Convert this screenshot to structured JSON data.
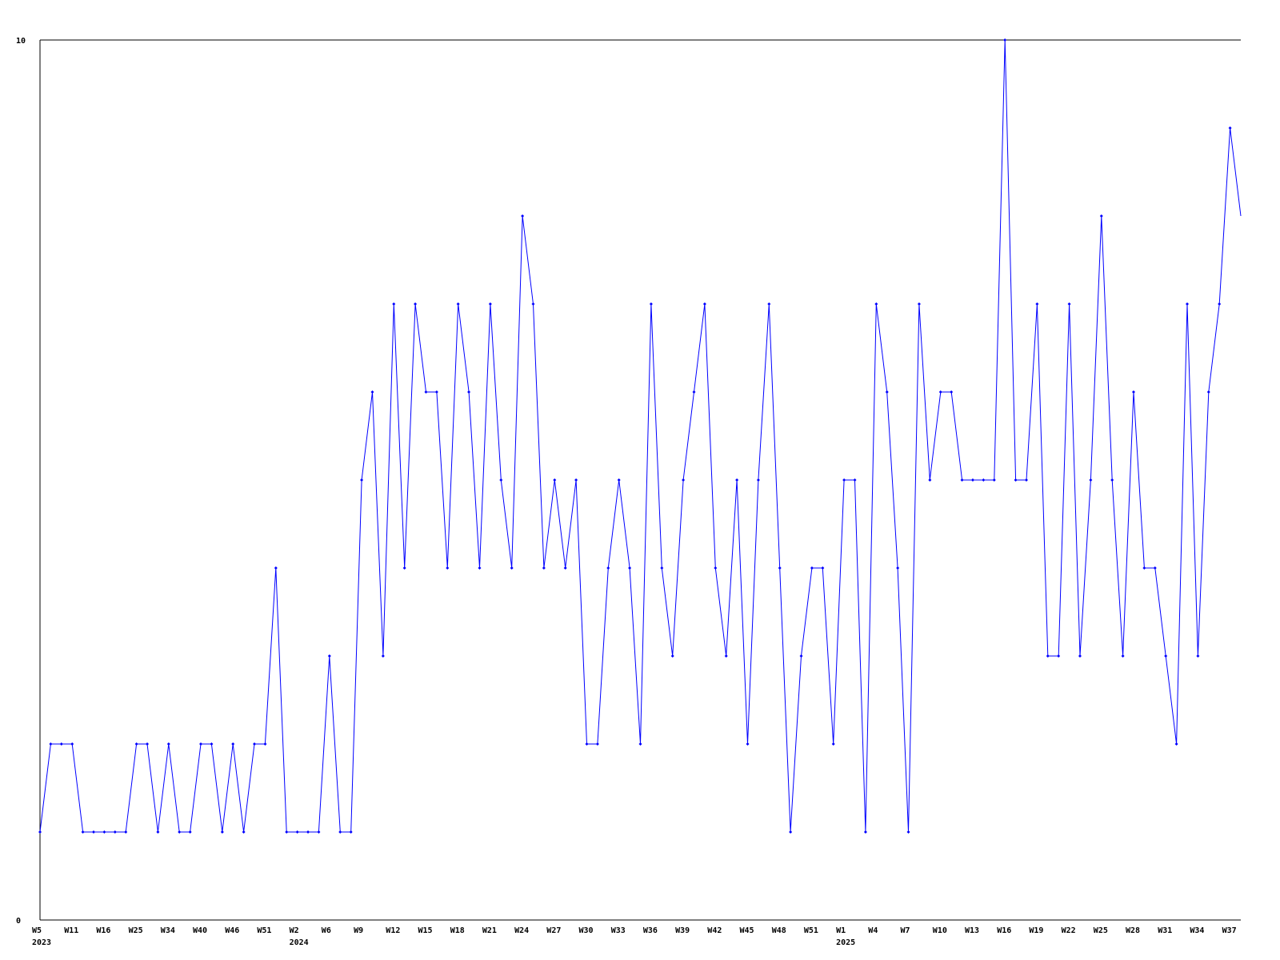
{
  "chart_data": {
    "type": "line",
    "title": "",
    "xlabel": "",
    "ylabel": "",
    "ylim": [
      0,
      10
    ],
    "y_tick_labels": [
      "0",
      "10"
    ],
    "grid": false,
    "line_color": "#0000ff",
    "x_tick_labels": [
      "W5",
      "W11",
      "W16",
      "W25",
      "W34",
      "W40",
      "W46",
      "W51",
      "W2",
      "W6",
      "W9",
      "W12",
      "W15",
      "W18",
      "W21",
      "W24",
      "W27",
      "W30",
      "W33",
      "W36",
      "W39",
      "W42",
      "W45",
      "W48",
      "W51",
      "W1",
      "W4",
      "W7",
      "W10",
      "W13",
      "W16",
      "W19",
      "W22",
      "W25",
      "W28",
      "W31",
      "W34",
      "W37"
    ],
    "x_year_labels": [
      {
        "tick": 0,
        "label": "2023"
      },
      {
        "tick": 8,
        "label": "2024"
      },
      {
        "tick": 25,
        "label": "2025"
      }
    ],
    "tick_every_n_points": 3,
    "values": [
      1,
      2,
      2,
      2,
      1,
      1,
      1,
      1,
      1,
      2,
      2,
      1,
      2,
      1,
      1,
      2,
      2,
      1,
      2,
      1,
      2,
      2,
      4,
      1,
      1,
      1,
      1,
      3,
      1,
      1,
      5,
      6,
      3,
      7,
      4,
      7,
      6,
      6,
      4,
      7,
      6,
      4,
      7,
      5,
      4,
      8,
      7,
      4,
      5,
      4,
      5,
      2,
      2,
      4,
      5,
      4,
      2,
      7,
      4,
      3,
      5,
      6,
      7,
      4,
      3,
      5,
      2,
      5,
      7,
      4,
      1,
      3,
      4,
      4,
      2,
      5,
      5,
      1,
      7,
      6,
      4,
      1,
      7,
      5,
      6,
      6,
      5,
      5,
      5,
      5,
      10,
      5,
      5,
      7,
      3,
      3,
      7,
      3,
      5,
      8,
      5,
      3,
      6,
      4,
      4,
      3,
      2,
      7,
      3,
      6,
      7,
      9,
      8
    ]
  }
}
